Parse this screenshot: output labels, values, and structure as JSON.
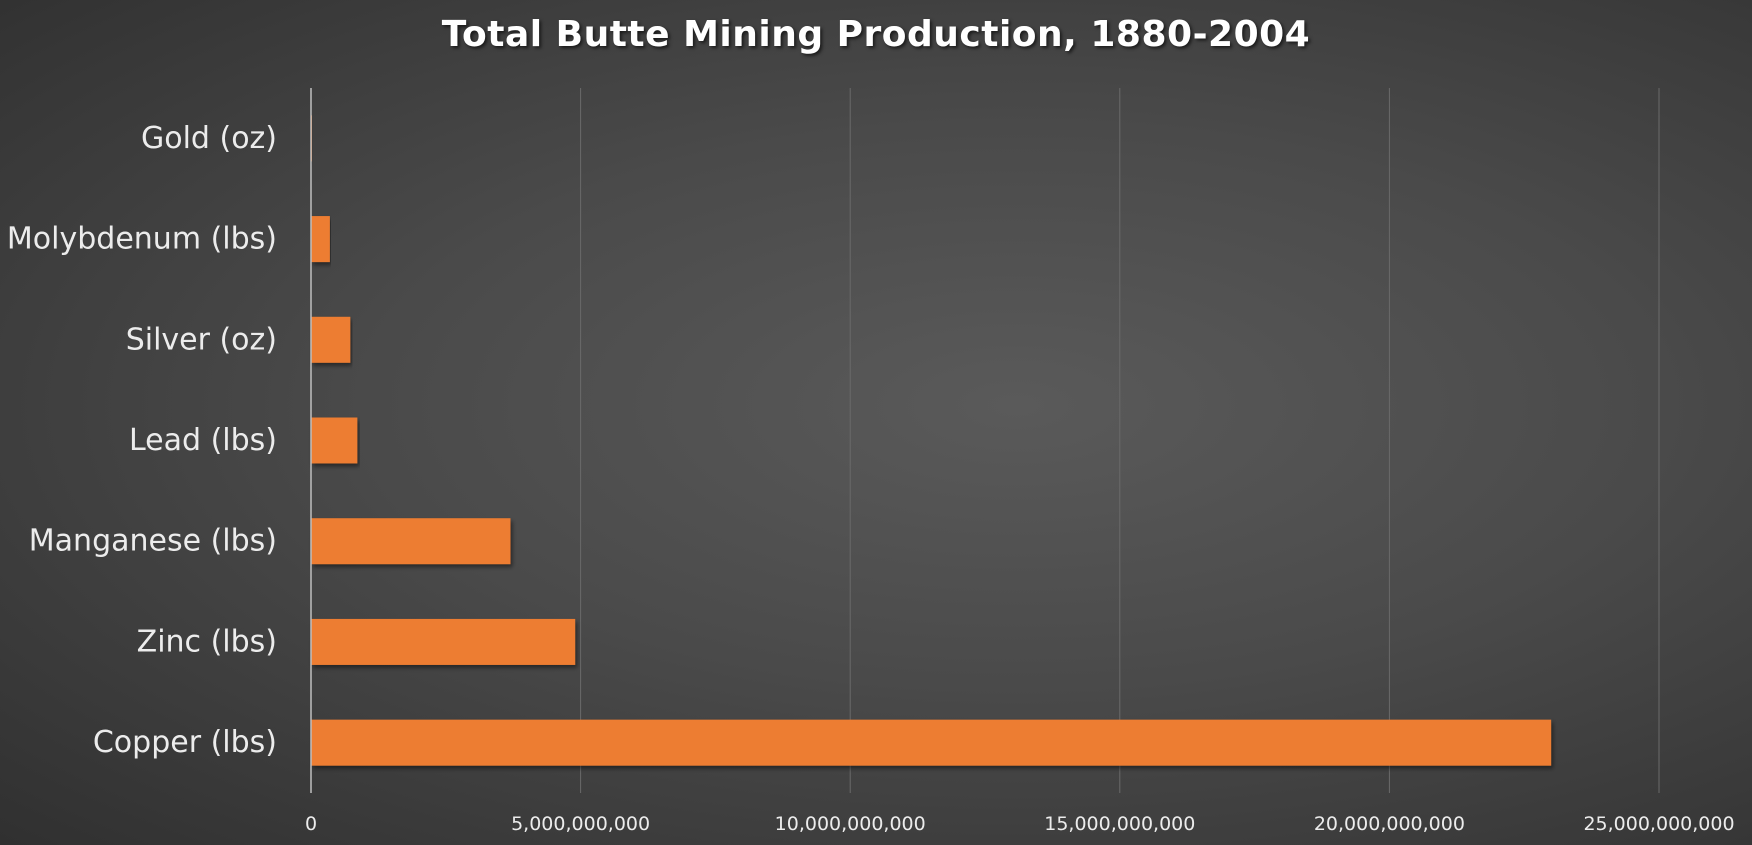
{
  "chart_data": {
    "type": "bar",
    "orientation": "horizontal",
    "title": "Total Butte Mining Production, 1880-2004",
    "categories": [
      "Gold (oz)",
      "Molybdenum (lbs)",
      "Silver (oz)",
      "Lead (lbs)",
      "Manganese (lbs)",
      "Zinc (lbs)",
      "Copper (lbs)"
    ],
    "values": [
      3000000,
      350000000,
      730000000,
      860000000,
      3700000000,
      4900000000,
      23000000000
    ],
    "xlim": [
      0,
      25000000000
    ],
    "xticks": [
      0,
      5000000000,
      10000000000,
      15000000000,
      20000000000,
      25000000000
    ],
    "xtick_labels": [
      "0",
      "5,000,000,000",
      "10,000,000,000",
      "15,000,000,000",
      "20,000,000,000",
      "25,000,000,000"
    ],
    "xlabel": "",
    "ylabel": "",
    "grid": "vertical",
    "legend": "none",
    "colors": {
      "bar": "#ED7D31",
      "grid": "#6a6a6a",
      "axis": "#bfbfbf",
      "text": "#ececec",
      "title": "#ffffff"
    }
  }
}
